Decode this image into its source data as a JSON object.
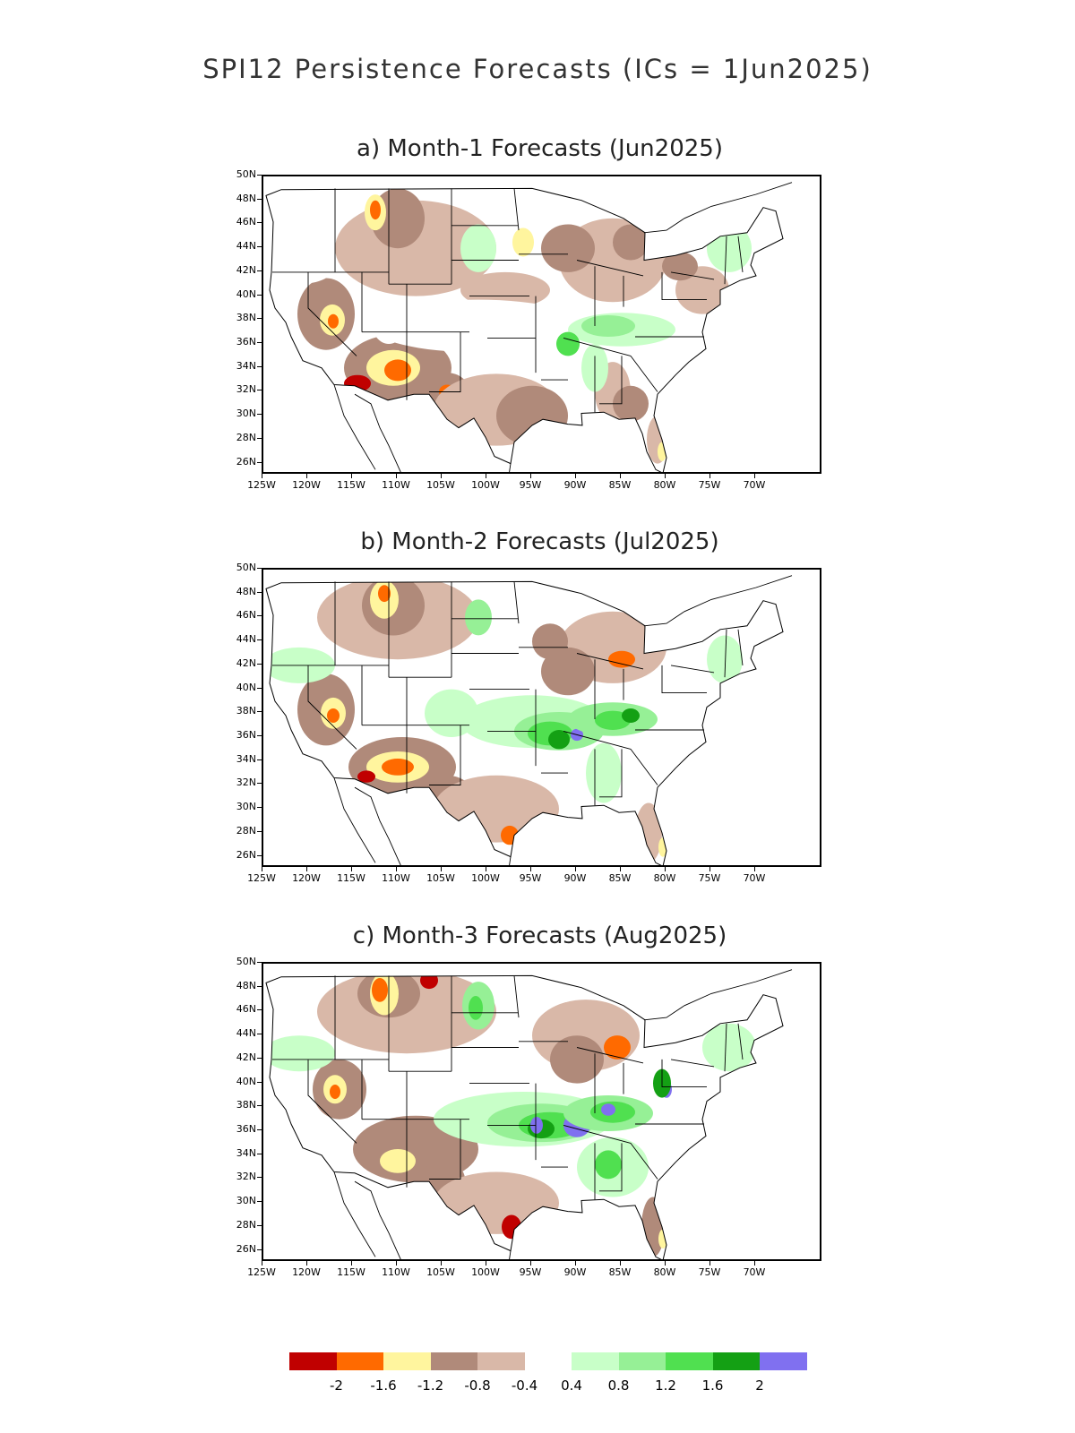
{
  "title": "SPI12 Persistence Forecasts (ICs = 1Jun2025)",
  "panels": [
    {
      "title": "a) Month-1 Forecasts (Jun2025)"
    },
    {
      "title": "b) Month-2 Forecasts (Jul2025)"
    },
    {
      "title": "c) Month-3 Forecasts (Aug2025)"
    }
  ],
  "lat_labels": [
    "50N",
    "48N",
    "46N",
    "44N",
    "42N",
    "40N",
    "38N",
    "36N",
    "34N",
    "32N",
    "30N",
    "28N",
    "26N"
  ],
  "lon_labels": [
    "125W",
    "120W",
    "115W",
    "110W",
    "105W",
    "100W",
    "95W",
    "90W",
    "85W",
    "80W",
    "75W",
    "70W"
  ],
  "legend": {
    "colors": [
      "#c00000",
      "#ff6a00",
      "#fff59e",
      "#b08a7a",
      "#d9b8a8",
      "#ffffff",
      "#c8ffc8",
      "#96f096",
      "#50e050",
      "#14a014",
      "#8070f0"
    ],
    "labels": [
      "-2",
      "-1.6",
      "-1.2",
      "-0.8",
      "-0.4",
      "0.4",
      "0.8",
      "1.2",
      "1.6",
      "2"
    ]
  },
  "chart_data": {
    "type": "heatmap",
    "variable": "SPI12",
    "lat_range": [
      "26N",
      "50N"
    ],
    "lon_range": [
      "125W",
      "70W"
    ],
    "color_thresholds": [
      -2,
      -1.6,
      -1.2,
      -0.8,
      -0.4,
      0.4,
      0.8,
      1.2,
      1.6,
      2
    ]
  }
}
